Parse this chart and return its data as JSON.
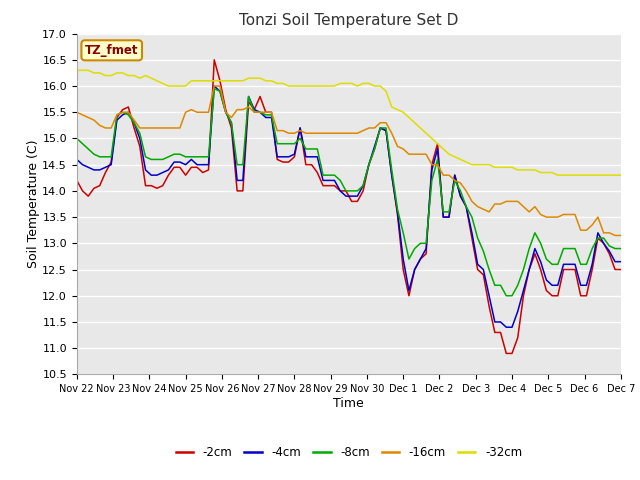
{
  "title": "Tonzi Soil Temperature Set D",
  "xlabel": "Time",
  "ylabel": "Soil Temperature (C)",
  "ylim": [
    10.5,
    17.0
  ],
  "yticks": [
    10.5,
    11.0,
    11.5,
    12.0,
    12.5,
    13.0,
    13.5,
    14.0,
    14.5,
    15.0,
    15.5,
    16.0,
    16.5,
    17.0
  ],
  "xtick_labels": [
    "Nov 22",
    "Nov 23",
    "Nov 24",
    "Nov 25",
    "Nov 26",
    "Nov 27",
    "Nov 28",
    "Nov 29",
    "Nov 30",
    "Dec 1",
    "Dec 2",
    "Dec 3",
    "Dec 4",
    "Dec 5",
    "Dec 6",
    "Dec 7"
  ],
  "colors": {
    "-2cm": "#cc0000",
    "-4cm": "#0000cc",
    "-8cm": "#00aa00",
    "-16cm": "#dd8800",
    "-32cm": "#dddd00"
  },
  "legend_label": "TZ_fmet",
  "fig_facecolor": "#ffffff",
  "plot_bg": "#e8e8e8",
  "grid_color": "#ffffff",
  "series": {
    "-2cm": [
      14.2,
      14.0,
      13.9,
      14.05,
      14.1,
      14.35,
      14.55,
      15.4,
      15.55,
      15.6,
      15.2,
      14.85,
      14.1,
      14.1,
      14.05,
      14.1,
      14.3,
      14.45,
      14.45,
      14.3,
      14.45,
      14.45,
      14.35,
      14.4,
      16.5,
      16.1,
      15.55,
      15.2,
      14.0,
      14.0,
      15.7,
      15.55,
      15.8,
      15.5,
      15.5,
      14.6,
      14.55,
      14.55,
      14.65,
      15.2,
      14.5,
      14.5,
      14.35,
      14.1,
      14.1,
      14.1,
      14.0,
      14.0,
      13.8,
      13.8,
      14.0,
      14.5,
      14.8,
      15.2,
      15.15,
      14.3,
      13.55,
      12.5,
      12.0,
      12.5,
      12.7,
      12.8,
      14.5,
      14.9,
      13.5,
      13.5,
      14.3,
      13.9,
      13.7,
      13.1,
      12.5,
      12.4,
      11.8,
      11.3,
      11.3,
      10.9,
      10.9,
      11.2,
      12.0,
      12.5,
      12.8,
      12.5,
      12.1,
      12.0,
      12.0,
      12.5,
      12.5,
      12.5,
      12.0,
      12.0,
      12.5,
      13.1,
      13.0,
      12.8,
      12.5,
      12.5
    ],
    "-4cm": [
      14.6,
      14.5,
      14.45,
      14.4,
      14.4,
      14.45,
      14.5,
      15.35,
      15.45,
      15.5,
      15.3,
      15.0,
      14.4,
      14.3,
      14.3,
      14.35,
      14.4,
      14.55,
      14.55,
      14.5,
      14.6,
      14.5,
      14.5,
      14.5,
      16.0,
      15.9,
      15.5,
      15.3,
      14.2,
      14.2,
      15.8,
      15.55,
      15.5,
      15.4,
      15.4,
      14.65,
      14.65,
      14.65,
      14.7,
      15.2,
      14.65,
      14.65,
      14.65,
      14.2,
      14.2,
      14.2,
      14.0,
      13.9,
      13.9,
      13.9,
      14.1,
      14.5,
      14.85,
      15.2,
      15.15,
      14.3,
      13.6,
      12.7,
      12.1,
      12.5,
      12.7,
      12.9,
      14.4,
      14.8,
      13.5,
      13.5,
      14.3,
      13.9,
      13.7,
      13.2,
      12.6,
      12.5,
      12.0,
      11.5,
      11.5,
      11.4,
      11.4,
      11.7,
      12.1,
      12.5,
      12.9,
      12.65,
      12.3,
      12.2,
      12.2,
      12.6,
      12.6,
      12.6,
      12.2,
      12.2,
      12.6,
      13.2,
      13.0,
      12.85,
      12.65,
      12.65
    ],
    "-8cm": [
      15.0,
      14.9,
      14.8,
      14.7,
      14.65,
      14.65,
      14.65,
      15.45,
      15.5,
      15.45,
      15.3,
      15.1,
      14.65,
      14.6,
      14.6,
      14.6,
      14.65,
      14.7,
      14.7,
      14.65,
      14.65,
      14.65,
      14.65,
      14.65,
      15.95,
      15.9,
      15.5,
      15.3,
      14.5,
      14.5,
      15.8,
      15.5,
      15.5,
      15.45,
      15.45,
      14.9,
      14.9,
      14.9,
      14.9,
      15.0,
      14.8,
      14.8,
      14.8,
      14.3,
      14.3,
      14.3,
      14.2,
      14.0,
      14.0,
      14.0,
      14.1,
      14.5,
      14.8,
      15.2,
      15.2,
      14.4,
      13.65,
      13.2,
      12.7,
      12.9,
      13.0,
      13.0,
      14.2,
      14.6,
      13.6,
      13.6,
      14.2,
      14.0,
      13.7,
      13.5,
      13.1,
      12.85,
      12.5,
      12.2,
      12.2,
      12.0,
      12.0,
      12.2,
      12.5,
      12.9,
      13.2,
      13.0,
      12.7,
      12.6,
      12.6,
      12.9,
      12.9,
      12.9,
      12.6,
      12.6,
      12.9,
      13.1,
      13.1,
      12.95,
      12.9,
      12.9
    ],
    "-16cm": [
      15.5,
      15.45,
      15.4,
      15.35,
      15.25,
      15.2,
      15.2,
      15.45,
      15.5,
      15.5,
      15.35,
      15.2,
      15.2,
      15.2,
      15.2,
      15.2,
      15.2,
      15.2,
      15.2,
      15.5,
      15.55,
      15.5,
      15.5,
      15.5,
      16.0,
      16.0,
      15.5,
      15.4,
      15.55,
      15.55,
      15.6,
      15.5,
      15.5,
      15.5,
      15.5,
      15.15,
      15.15,
      15.1,
      15.1,
      15.15,
      15.1,
      15.1,
      15.1,
      15.1,
      15.1,
      15.1,
      15.1,
      15.1,
      15.1,
      15.1,
      15.15,
      15.2,
      15.2,
      15.3,
      15.3,
      15.1,
      14.85,
      14.8,
      14.7,
      14.7,
      14.7,
      14.7,
      14.5,
      14.5,
      14.3,
      14.3,
      14.2,
      14.15,
      14.0,
      13.8,
      13.7,
      13.65,
      13.6,
      13.75,
      13.75,
      13.8,
      13.8,
      13.8,
      13.7,
      13.6,
      13.7,
      13.55,
      13.5,
      13.5,
      13.5,
      13.55,
      13.55,
      13.55,
      13.25,
      13.25,
      13.35,
      13.5,
      13.2,
      13.2,
      13.15,
      13.15
    ],
    "-32cm": [
      16.3,
      16.3,
      16.3,
      16.25,
      16.25,
      16.2,
      16.2,
      16.25,
      16.25,
      16.2,
      16.2,
      16.15,
      16.2,
      16.15,
      16.1,
      16.05,
      16.0,
      16.0,
      16.0,
      16.0,
      16.1,
      16.1,
      16.1,
      16.1,
      16.1,
      16.1,
      16.1,
      16.1,
      16.1,
      16.1,
      16.15,
      16.15,
      16.15,
      16.1,
      16.1,
      16.05,
      16.05,
      16.0,
      16.0,
      16.0,
      16.0,
      16.0,
      16.0,
      16.0,
      16.0,
      16.0,
      16.05,
      16.05,
      16.05,
      16.0,
      16.05,
      16.05,
      16.0,
      16.0,
      15.9,
      15.6,
      15.55,
      15.5,
      15.4,
      15.3,
      15.2,
      15.1,
      15.0,
      14.9,
      14.8,
      14.7,
      14.65,
      14.6,
      14.55,
      14.5,
      14.5,
      14.5,
      14.5,
      14.45,
      14.45,
      14.45,
      14.45,
      14.4,
      14.4,
      14.4,
      14.4,
      14.35,
      14.35,
      14.35,
      14.3,
      14.3,
      14.3,
      14.3,
      14.3,
      14.3,
      14.3,
      14.3,
      14.3,
      14.3,
      14.3,
      14.3
    ]
  },
  "n_points": 96
}
